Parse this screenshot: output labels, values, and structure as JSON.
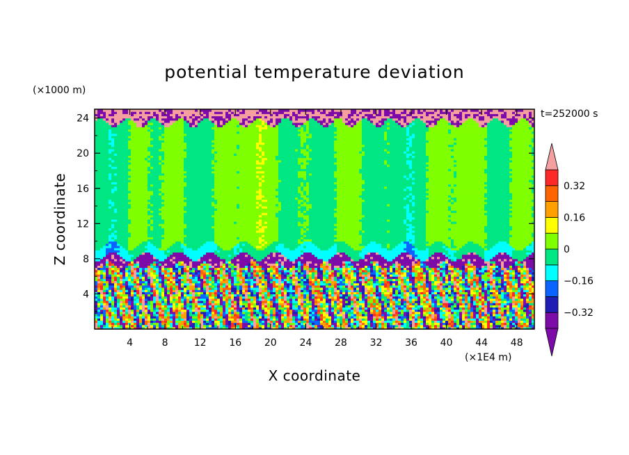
{
  "chart_data": {
    "type": "heatmap",
    "title": "potential temperature deviation",
    "xlabel": "X coordinate",
    "ylabel": "Z coordinate",
    "x_unit": "(×1E4 m)",
    "y_unit": "(×1000 m)",
    "time_label": "t=252000 s",
    "xlim": [
      0,
      50
    ],
    "ylim": [
      0,
      25
    ],
    "x_ticks": [
      "4",
      "8",
      "12",
      "16",
      "20",
      "24",
      "28",
      "32",
      "36",
      "40",
      "44",
      "48"
    ],
    "y_ticks": [
      "4",
      "8",
      "12",
      "16",
      "20",
      "24"
    ],
    "colorbar": {
      "levels": [
        -0.4,
        -0.32,
        -0.24,
        -0.16,
        -0.08,
        0,
        0.08,
        0.16,
        0.24,
        0.32,
        0.4
      ],
      "tick_labels": [
        "0.32",
        "0.16",
        "0",
        "−0.16",
        "−0.32"
      ],
      "colors": [
        "#7d0ba8",
        "#1e1eb4",
        "#0a64ff",
        "#00ffff",
        "#00e682",
        "#7fff00",
        "#ffff00",
        "#ffa000",
        "#ff6400",
        "#ff2828"
      ],
      "under_color": "#7d0ba8",
      "over_color": "#f5a0a0"
    },
    "regions": [
      {
        "z_range": [
          0,
          7.5
        ],
        "pattern": "turbulent mix of all levels (-0.4 to 0.4)"
      },
      {
        "z_range": [
          7.5,
          8.5
        ],
        "value": -0.4
      },
      {
        "z_range": [
          8.5,
          23.5
        ],
        "value": 0.0
      },
      {
        "z_range": [
          23.5,
          25
        ],
        "value": 0.4
      }
    ]
  }
}
